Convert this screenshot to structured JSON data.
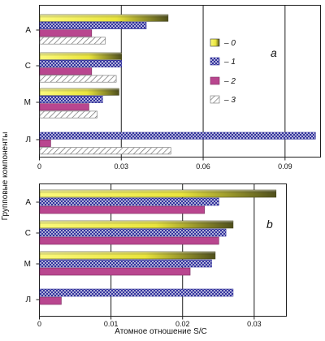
{
  "y_axis_label": "Групповые компоненты",
  "x_axis_label": "Атомное отношение S/C",
  "colors": {
    "s0_light": "#f7f46a",
    "s0_dark": "#5e5e1e",
    "s1_blue": "#2e2e9a",
    "s2_magenta": "#b9468f",
    "s3_hatch": "#6f6f6f",
    "grid": "#1f1f1f"
  },
  "chart_data": [
    {
      "type": "bar",
      "panel_label": "a",
      "orientation": "horizontal",
      "categories": [
        "А",
        "С",
        "М",
        "Л"
      ],
      "series": [
        {
          "name": "– 0",
          "values": [
            0.047,
            0.03,
            0.029,
            null
          ]
        },
        {
          "name": "– 1",
          "values": [
            0.039,
            0.03,
            0.023,
            0.101
          ]
        },
        {
          "name": "– 2",
          "values": [
            0.019,
            0.019,
            0.018,
            0.004
          ]
        },
        {
          "name": "– 3",
          "values": [
            0.024,
            0.028,
            0.021,
            0.048
          ]
        }
      ],
      "xlim": [
        0,
        0.103
      ],
      "xticks": [
        "0",
        "0.03",
        "0.06",
        "0.09"
      ],
      "grid": "vertical",
      "legend": "inside-right"
    },
    {
      "type": "bar",
      "panel_label": "b",
      "orientation": "horizontal",
      "categories": [
        "А",
        "С",
        "М",
        "Л"
      ],
      "series": [
        {
          "name": "– 0",
          "values": [
            0.033,
            0.027,
            0.0245,
            null
          ]
        },
        {
          "name": "– 1",
          "values": [
            0.025,
            0.026,
            0.024,
            0.027
          ]
        },
        {
          "name": "– 2",
          "values": [
            0.023,
            0.025,
            0.021,
            0.003
          ]
        }
      ],
      "xlim": [
        0,
        0.0345
      ],
      "xticks": [
        "0",
        "0.01",
        "0.02",
        "0.03"
      ],
      "grid": "vertical"
    }
  ]
}
